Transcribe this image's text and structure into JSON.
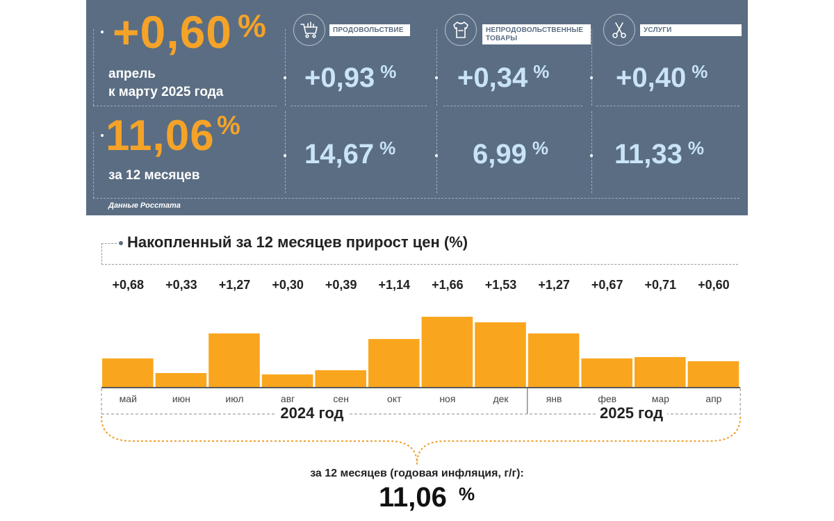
{
  "monthly": {
    "value": "+0,60",
    "pct": "%",
    "label_line1": "апрель",
    "label_line2": "к марту 2025 года"
  },
  "annual": {
    "value": "11,06",
    "pct": "%",
    "label": "за 12 месяцев"
  },
  "categories": [
    {
      "name": "ПРОДОВОЛЬСТВИЕ",
      "icon": "shopping-cart-icon",
      "monthly": "+0,93",
      "annual": "14,67",
      "pct": "%"
    },
    {
      "name_line1": "НЕПРОДОВОЛЬСТВЕННЫЕ",
      "name_line2": "ТОВАРЫ",
      "icon": "clothing-icon",
      "monthly": "+0,34",
      "annual": "6,99",
      "pct": "%"
    },
    {
      "name": "УСЛУГИ",
      "icon": "scissors-icon",
      "monthly": "+0,40",
      "annual": "11,33",
      "pct": "%"
    }
  ],
  "source": "Данные Росстата",
  "colors": {
    "panel": "#5a6d83",
    "accent": "#f5a328",
    "value_light": "#c9e4f6",
    "bar": "#f9a61e"
  },
  "chart_data": {
    "type": "bar",
    "title": "Накопленный за 12 месяцев прирост цен (%)",
    "categories": [
      "май",
      "июн",
      "июл",
      "авг",
      "сен",
      "окт",
      "ноя",
      "дек",
      "янв",
      "фев",
      "мар",
      "апр"
    ],
    "values": [
      0.68,
      0.33,
      1.27,
      0.3,
      0.39,
      1.14,
      1.66,
      1.53,
      1.27,
      0.67,
      0.71,
      0.6
    ],
    "value_labels": [
      "+0,68",
      "+0,33",
      "+1,27",
      "+0,30",
      "+0,39",
      "+1,14",
      "+1,66",
      "+1,53",
      "+1,27",
      "+0,67",
      "+0,71",
      "+0,60"
    ],
    "year_groups": [
      {
        "label": "2024 год",
        "months": 8
      },
      {
        "label": "2025 год",
        "months": 4
      }
    ],
    "summary_label": "за 12 месяцев (годовая инфляция, г/г):",
    "summary_value": "11,06",
    "summary_pct": "%",
    "ylim": [
      0,
      1.66
    ],
    "grid": false,
    "legend": "none"
  }
}
